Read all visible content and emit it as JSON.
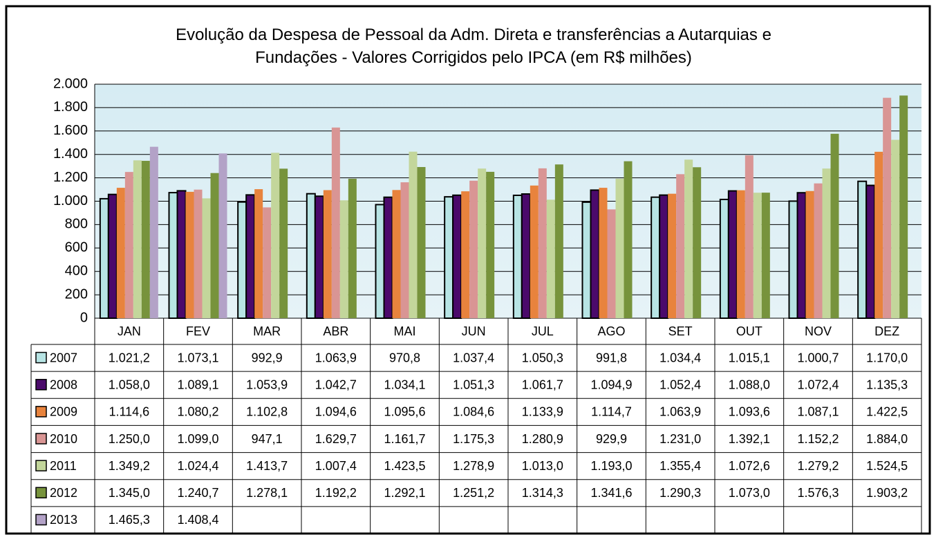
{
  "chart_data": {
    "type": "bar",
    "title": "Evolução da Despesa de Pessoal da Adm. Direta e transferências a Autarquias e Fundações - Valores Corrigidos pelo IPCA (em R$ milhões)",
    "categories": [
      "JAN",
      "FEV",
      "MAR",
      "ABR",
      "MAI",
      "JUN",
      "JUL",
      "AGO",
      "SET",
      "OUT",
      "NOV",
      "DEZ"
    ],
    "ylim": [
      0,
      2000
    ],
    "yticks": [
      0,
      {
        "value": 200,
        "label": "200"
      },
      {
        "value": 400,
        "label": "400"
      },
      {
        "value": 600,
        "label": "600"
      },
      {
        "value": 800,
        "label": "800"
      },
      {
        "value": 1000,
        "label": "1.000"
      },
      {
        "value": 1200,
        "label": "1.200"
      },
      {
        "value": 1400,
        "label": "1.400"
      },
      {
        "value": 1600,
        "label": "1.600"
      },
      {
        "value": 1800,
        "label": "1.800"
      },
      {
        "value": 2000,
        "label": "2.000"
      }
    ],
    "grid": true,
    "series": [
      {
        "name": "2007",
        "color": "#b7e4e4",
        "outline": "#000000",
        "values": [
          1021.2,
          1073.1,
          992.9,
          1063.9,
          970.8,
          1037.4,
          1050.3,
          991.8,
          1034.4,
          1015.1,
          1000.7,
          1170.0
        ],
        "value_labels": [
          "1.021,2",
          "1.073,1",
          "992,9",
          "1.063,9",
          "970,8",
          "1.037,4",
          "1.050,3",
          "991,8",
          "1.034,4",
          "1.015,1",
          "1.000,7",
          "1.170,0"
        ]
      },
      {
        "name": "2008",
        "color": "#4b0a6b",
        "outline": "#000000",
        "values": [
          1058.0,
          1089.1,
          1053.9,
          1042.7,
          1034.1,
          1051.3,
          1061.7,
          1094.9,
          1052.4,
          1088.0,
          1072.4,
          1135.3
        ],
        "value_labels": [
          "1.058,0",
          "1.089,1",
          "1.053,9",
          "1.042,7",
          "1.034,1",
          "1.051,3",
          "1.061,7",
          "1.094,9",
          "1.052,4",
          "1.088,0",
          "1.072,4",
          "1.135,3"
        ]
      },
      {
        "name": "2009",
        "color": "#e8833d",
        "values": [
          1114.6,
          1080.2,
          1102.8,
          1094.6,
          1095.6,
          1084.6,
          1133.9,
          1114.7,
          1063.9,
          1093.6,
          1087.1,
          1422.5
        ],
        "value_labels": [
          "1.114,6",
          "1.080,2",
          "1.102,8",
          "1.094,6",
          "1.095,6",
          "1.084,6",
          "1.133,9",
          "1.114,7",
          "1.063,9",
          "1.093,6",
          "1.087,1",
          "1.422,5"
        ]
      },
      {
        "name": "2010",
        "color": "#d99594",
        "values": [
          1250.0,
          1099.0,
          947.1,
          1629.7,
          1161.7,
          1175.3,
          1280.9,
          929.9,
          1231.0,
          1392.1,
          1152.2,
          1884.0
        ],
        "value_labels": [
          "1.250,0",
          "1.099,0",
          "947,1",
          "1.629,7",
          "1.161,7",
          "1.175,3",
          "1.280,9",
          "929,9",
          "1.231,0",
          "1.392,1",
          "1.152,2",
          "1.884,0"
        ]
      },
      {
        "name": "2011",
        "color": "#c3d69b",
        "values": [
          1349.2,
          1024.4,
          1413.7,
          1007.4,
          1423.5,
          1278.9,
          1013.0,
          1193.0,
          1355.4,
          1072.6,
          1279.2,
          1524.5
        ],
        "value_labels": [
          "1.349,2",
          "1.024,4",
          "1.413,7",
          "1.007,4",
          "1.423,5",
          "1.278,9",
          "1.013,0",
          "1.193,0",
          "1.355,4",
          "1.072,6",
          "1.279,2",
          "1.524,5"
        ]
      },
      {
        "name": "2012",
        "color": "#77933c",
        "values": [
          1345.0,
          1240.7,
          1278.1,
          1192.2,
          1292.1,
          1251.2,
          1314.3,
          1341.6,
          1290.3,
          1073.0,
          1576.3,
          1903.2
        ],
        "value_labels": [
          "1.345,0",
          "1.240,7",
          "1.278,1",
          "1.192,2",
          "1.292,1",
          "1.251,2",
          "1.314,3",
          "1.341,6",
          "1.290,3",
          "1.073,0",
          "1.576,3",
          "1.903,2"
        ]
      },
      {
        "name": "2013",
        "color": "#b3a2c7",
        "values": [
          1465.3,
          1408.4,
          null,
          null,
          null,
          null,
          null,
          null,
          null,
          null,
          null,
          null
        ],
        "value_labels": [
          "1.465,3",
          "1.408,4",
          null,
          null,
          null,
          null,
          null,
          null,
          null,
          null,
          null,
          null
        ]
      }
    ]
  }
}
